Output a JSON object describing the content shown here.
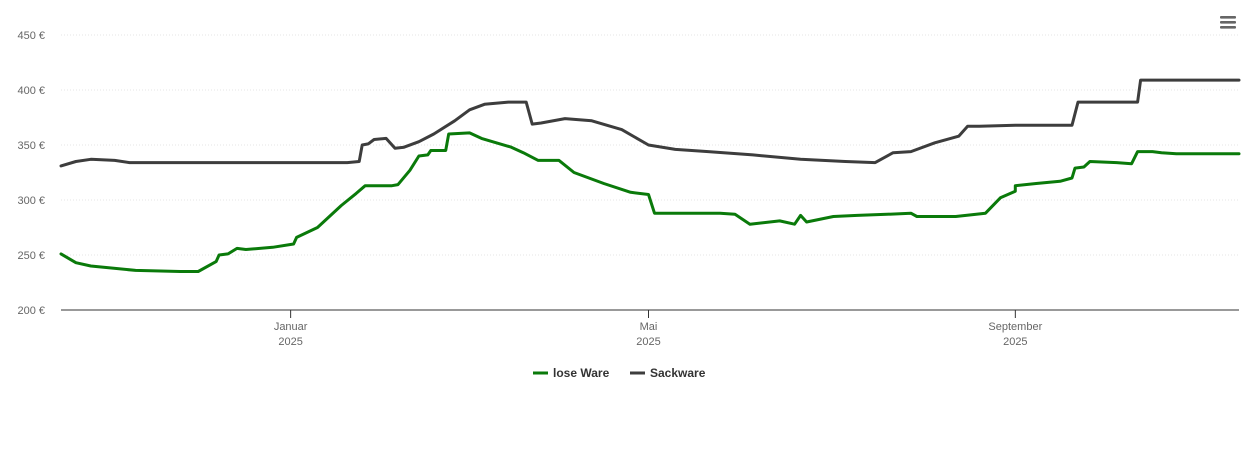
{
  "chart_data": {
    "type": "line",
    "x_type": "date",
    "xlim": [
      "2024-10-16",
      "2025-11-15"
    ],
    "ylim": [
      200,
      450
    ],
    "y_ticks": [
      200,
      250,
      300,
      350,
      400,
      450
    ],
    "y_tick_labels": [
      "200 €",
      "250 €",
      "300 €",
      "350 €",
      "400 €",
      "450 €"
    ],
    "x_ticks": [
      {
        "date": "2025-01-01",
        "month": "Januar",
        "year": "2025"
      },
      {
        "date": "2025-05-01",
        "month": "Mai",
        "year": "2025"
      },
      {
        "date": "2025-09-01",
        "month": "September",
        "year": "2025"
      }
    ],
    "grid": true,
    "legend_position": "bottom-center",
    "series": [
      {
        "name": "lose Ware",
        "color": "#0a7a0a",
        "points": [
          [
            "2024-10-16",
            251
          ],
          [
            "2024-10-21",
            243
          ],
          [
            "2024-10-26",
            240
          ],
          [
            "2024-11-10",
            236
          ],
          [
            "2024-11-25",
            235
          ],
          [
            "2024-12-01",
            235
          ],
          [
            "2024-12-07",
            244
          ],
          [
            "2024-12-08",
            250
          ],
          [
            "2024-12-11",
            251
          ],
          [
            "2024-12-14",
            256
          ],
          [
            "2024-12-17",
            255
          ],
          [
            "2024-12-26",
            257
          ],
          [
            "2025-01-02",
            260
          ],
          [
            "2025-01-03",
            266
          ],
          [
            "2025-01-10",
            275
          ],
          [
            "2025-01-18",
            295
          ],
          [
            "2025-01-23",
            306
          ],
          [
            "2025-01-26",
            313
          ],
          [
            "2025-02-02",
            313
          ],
          [
            "2025-02-04",
            313
          ],
          [
            "2025-02-06",
            314
          ],
          [
            "2025-02-10",
            327
          ],
          [
            "2025-02-13",
            340
          ],
          [
            "2025-02-16",
            341
          ],
          [
            "2025-02-17",
            345
          ],
          [
            "2025-02-22",
            345
          ],
          [
            "2025-02-23",
            360
          ],
          [
            "2025-03-02",
            361
          ],
          [
            "2025-03-06",
            356
          ],
          [
            "2025-03-16",
            348
          ],
          [
            "2025-03-20",
            343
          ],
          [
            "2025-03-25",
            336
          ],
          [
            "2025-04-01",
            336
          ],
          [
            "2025-04-06",
            325
          ],
          [
            "2025-04-16",
            315
          ],
          [
            "2025-04-25",
            307
          ],
          [
            "2025-05-01",
            305
          ],
          [
            "2025-05-03",
            288
          ],
          [
            "2025-05-15",
            288
          ],
          [
            "2025-05-25",
            288
          ],
          [
            "2025-05-30",
            287
          ],
          [
            "2025-06-04",
            278
          ],
          [
            "2025-06-14",
            281
          ],
          [
            "2025-06-19",
            278
          ],
          [
            "2025-06-21",
            286
          ],
          [
            "2025-06-23",
            280
          ],
          [
            "2025-07-02",
            285
          ],
          [
            "2025-07-10",
            286
          ],
          [
            "2025-07-20",
            287
          ],
          [
            "2025-07-28",
            288
          ],
          [
            "2025-07-30",
            285
          ],
          [
            "2025-08-12",
            285
          ],
          [
            "2025-08-22",
            288
          ],
          [
            "2025-08-27",
            302
          ],
          [
            "2025-09-01",
            308
          ],
          [
            "2025-09-01",
            313
          ],
          [
            "2025-09-08",
            315
          ],
          [
            "2025-09-16",
            317
          ],
          [
            "2025-09-20",
            320
          ],
          [
            "2025-09-21",
            329
          ],
          [
            "2025-09-24",
            330
          ],
          [
            "2025-09-26",
            335
          ],
          [
            "2025-10-05",
            334
          ],
          [
            "2025-10-10",
            333
          ],
          [
            "2025-10-12",
            344
          ],
          [
            "2025-10-17",
            344
          ],
          [
            "2025-10-20",
            343
          ],
          [
            "2025-10-25",
            342
          ],
          [
            "2025-11-15",
            342
          ]
        ]
      },
      {
        "name": "Sackware",
        "color": "#3d3d3d",
        "points": [
          [
            "2024-10-16",
            331
          ],
          [
            "2024-10-21",
            335
          ],
          [
            "2024-10-26",
            337
          ],
          [
            "2024-11-03",
            336
          ],
          [
            "2024-11-08",
            334
          ],
          [
            "2024-11-16",
            334
          ],
          [
            "2024-12-01",
            334
          ],
          [
            "2025-01-01",
            334
          ],
          [
            "2025-01-20",
            334
          ],
          [
            "2025-01-24",
            335
          ],
          [
            "2025-01-25",
            350
          ],
          [
            "2025-01-27",
            351
          ],
          [
            "2025-01-29",
            355
          ],
          [
            "2025-02-02",
            356
          ],
          [
            "2025-02-05",
            347
          ],
          [
            "2025-02-08",
            348
          ],
          [
            "2025-02-13",
            353
          ],
          [
            "2025-02-18",
            360
          ],
          [
            "2025-02-25",
            372
          ],
          [
            "2025-03-02",
            382
          ],
          [
            "2025-03-07",
            387
          ],
          [
            "2025-03-15",
            389
          ],
          [
            "2025-03-21",
            389
          ],
          [
            "2025-03-23",
            369
          ],
          [
            "2025-03-26",
            370
          ],
          [
            "2025-04-03",
            374
          ],
          [
            "2025-04-12",
            372
          ],
          [
            "2025-04-22",
            364
          ],
          [
            "2025-05-01",
            350
          ],
          [
            "2025-05-10",
            346
          ],
          [
            "2025-05-21",
            344
          ],
          [
            "2025-06-05",
            341
          ],
          [
            "2025-06-21",
            337
          ],
          [
            "2025-07-06",
            335
          ],
          [
            "2025-07-16",
            334
          ],
          [
            "2025-07-18",
            337
          ],
          [
            "2025-07-22",
            343
          ],
          [
            "2025-07-28",
            344
          ],
          [
            "2025-08-05",
            352
          ],
          [
            "2025-08-13",
            358
          ],
          [
            "2025-08-16",
            367
          ],
          [
            "2025-08-20",
            367
          ],
          [
            "2025-09-01",
            368
          ],
          [
            "2025-09-20",
            368
          ],
          [
            "2025-09-22",
            389
          ],
          [
            "2025-10-01",
            389
          ],
          [
            "2025-10-12",
            389
          ],
          [
            "2025-10-13",
            409
          ],
          [
            "2025-11-15",
            409
          ]
        ]
      }
    ]
  },
  "ui": {
    "menu_icon": "hamburger-menu-icon"
  }
}
